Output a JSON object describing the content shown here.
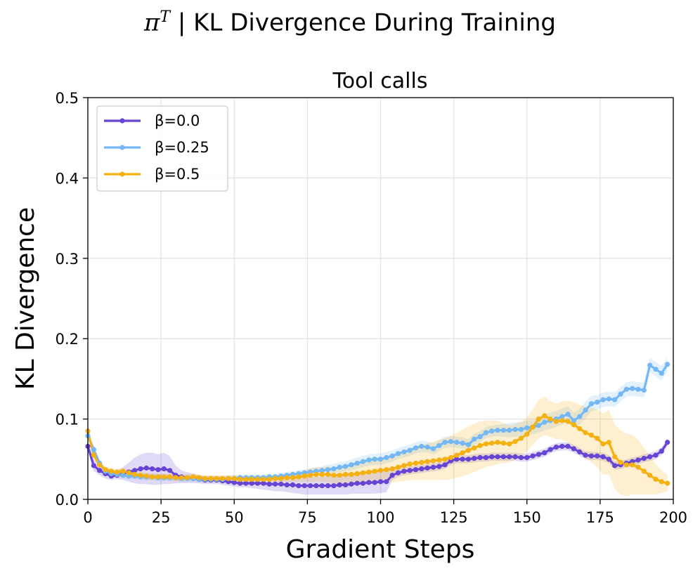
{
  "suptitle": {
    "symbol": "π",
    "superscript": "T",
    "text": "| KL Divergence During Training"
  },
  "chart_data": {
    "type": "line",
    "title": "Tool calls",
    "xlabel": "Gradient Steps",
    "ylabel": "KL Divergence",
    "xlim": [
      0,
      200
    ],
    "ylim": [
      0,
      0.5
    ],
    "xticks": [
      0,
      25,
      50,
      75,
      100,
      125,
      150,
      175,
      200
    ],
    "yticks": [
      0.0,
      0.1,
      0.2,
      0.3,
      0.4,
      0.5
    ],
    "xtick_labels": [
      "0",
      "25",
      "50",
      "75",
      "100",
      "125",
      "150",
      "175",
      "200"
    ],
    "ytick_labels": [
      "0.0",
      "0.1",
      "0.2",
      "0.3",
      "0.4",
      "0.5"
    ],
    "grid": true,
    "legend_position": "top-left",
    "x": [
      0,
      2,
      4,
      6,
      8,
      10,
      12,
      14,
      16,
      18,
      20,
      22,
      24,
      26,
      28,
      30,
      32,
      34,
      36,
      38,
      40,
      42,
      44,
      46,
      48,
      50,
      52,
      54,
      56,
      58,
      60,
      62,
      64,
      66,
      68,
      70,
      72,
      74,
      76,
      78,
      80,
      82,
      84,
      86,
      88,
      90,
      92,
      94,
      96,
      98,
      100,
      102,
      104,
      106,
      108,
      110,
      112,
      114,
      116,
      118,
      120,
      122,
      124,
      126,
      128,
      130,
      132,
      134,
      136,
      138,
      140,
      142,
      144,
      146,
      148,
      150,
      152,
      154,
      156,
      158,
      160,
      162,
      164,
      166,
      168,
      170,
      172,
      174,
      176,
      178,
      180,
      182,
      184,
      186,
      188,
      190,
      192,
      194,
      196,
      198
    ],
    "series": [
      {
        "name": "β=0.0",
        "color": "#6644d4",
        "values": [
          0.066,
          0.042,
          0.036,
          0.032,
          0.029,
          0.03,
          0.032,
          0.034,
          0.036,
          0.038,
          0.039,
          0.038,
          0.037,
          0.038,
          0.036,
          0.03,
          0.028,
          0.027,
          0.026,
          0.025,
          0.024,
          0.024,
          0.024,
          0.023,
          0.022,
          0.021,
          0.02,
          0.02,
          0.02,
          0.02,
          0.02,
          0.019,
          0.019,
          0.019,
          0.018,
          0.018,
          0.017,
          0.017,
          0.017,
          0.017,
          0.017,
          0.017,
          0.017,
          0.018,
          0.018,
          0.019,
          0.02,
          0.02,
          0.021,
          0.021,
          0.022,
          0.022,
          0.03,
          0.033,
          0.035,
          0.036,
          0.037,
          0.038,
          0.039,
          0.04,
          0.041,
          0.043,
          0.048,
          0.05,
          0.05,
          0.05,
          0.051,
          0.052,
          0.052,
          0.053,
          0.053,
          0.053,
          0.053,
          0.053,
          0.052,
          0.052,
          0.054,
          0.056,
          0.058,
          0.062,
          0.065,
          0.066,
          0.066,
          0.063,
          0.059,
          0.055,
          0.054,
          0.054,
          0.053,
          0.05,
          0.042,
          0.043,
          0.045,
          0.047,
          0.049,
          0.051,
          0.053,
          0.055,
          0.06,
          0.071
        ],
        "band_low": [
          0.06,
          0.035,
          0.03,
          0.026,
          0.024,
          0.025,
          0.024,
          0.022,
          0.02,
          0.019,
          0.019,
          0.018,
          0.018,
          0.019,
          0.019,
          0.02,
          0.02,
          0.02,
          0.02,
          0.02,
          0.019,
          0.019,
          0.019,
          0.018,
          0.017,
          0.016,
          0.015,
          0.015,
          0.014,
          0.013,
          0.012,
          0.011,
          0.01,
          0.01,
          0.009,
          0.008,
          0.007,
          0.006,
          0.006,
          0.006,
          0.006,
          0.006,
          0.006,
          0.006,
          0.006,
          0.007,
          0.007,
          0.007,
          0.007,
          0.007,
          0.008,
          0.009,
          0.024,
          0.028,
          0.03,
          0.031,
          0.032,
          0.033,
          0.034,
          0.035,
          0.036,
          0.038,
          0.043,
          0.045,
          0.045,
          0.045,
          0.046,
          0.047,
          0.047,
          0.048,
          0.048,
          0.048,
          0.048,
          0.048,
          0.047,
          0.047,
          0.049,
          0.051,
          0.053,
          0.057,
          0.06,
          0.061,
          0.061,
          0.058,
          0.054,
          0.05,
          0.049,
          0.049,
          0.048,
          0.045,
          0.037,
          0.038,
          0.04,
          0.042,
          0.044,
          0.046,
          0.048,
          0.05,
          0.055,
          0.066
        ],
        "band_high": [
          0.072,
          0.05,
          0.043,
          0.038,
          0.035,
          0.036,
          0.04,
          0.046,
          0.052,
          0.056,
          0.058,
          0.058,
          0.056,
          0.058,
          0.054,
          0.042,
          0.036,
          0.034,
          0.032,
          0.03,
          0.029,
          0.029,
          0.029,
          0.028,
          0.027,
          0.026,
          0.025,
          0.025,
          0.026,
          0.027,
          0.028,
          0.028,
          0.028,
          0.028,
          0.028,
          0.028,
          0.028,
          0.028,
          0.028,
          0.028,
          0.028,
          0.029,
          0.03,
          0.031,
          0.031,
          0.032,
          0.033,
          0.034,
          0.035,
          0.036,
          0.037,
          0.038,
          0.036,
          0.038,
          0.04,
          0.041,
          0.042,
          0.043,
          0.044,
          0.045,
          0.046,
          0.048,
          0.053,
          0.055,
          0.055,
          0.055,
          0.056,
          0.057,
          0.057,
          0.058,
          0.058,
          0.058,
          0.058,
          0.058,
          0.057,
          0.057,
          0.059,
          0.061,
          0.063,
          0.067,
          0.07,
          0.071,
          0.071,
          0.068,
          0.064,
          0.06,
          0.059,
          0.059,
          0.058,
          0.055,
          0.047,
          0.048,
          0.05,
          0.052,
          0.054,
          0.056,
          0.058,
          0.06,
          0.065,
          0.076
        ]
      },
      {
        "name": "β=0.25",
        "color": "#73b7f5",
        "values": [
          0.079,
          0.062,
          0.045,
          0.035,
          0.032,
          0.031,
          0.03,
          0.029,
          0.029,
          0.028,
          0.028,
          0.028,
          0.027,
          0.027,
          0.027,
          0.027,
          0.026,
          0.026,
          0.026,
          0.025,
          0.025,
          0.025,
          0.025,
          0.025,
          0.026,
          0.026,
          0.027,
          0.027,
          0.027,
          0.027,
          0.027,
          0.028,
          0.028,
          0.029,
          0.03,
          0.031,
          0.032,
          0.033,
          0.034,
          0.035,
          0.036,
          0.037,
          0.038,
          0.04,
          0.041,
          0.043,
          0.045,
          0.047,
          0.049,
          0.05,
          0.05,
          0.052,
          0.054,
          0.057,
          0.059,
          0.061,
          0.064,
          0.066,
          0.065,
          0.063,
          0.067,
          0.071,
          0.072,
          0.071,
          0.07,
          0.068,
          0.075,
          0.078,
          0.083,
          0.085,
          0.086,
          0.086,
          0.086,
          0.087,
          0.087,
          0.089,
          0.09,
          0.092,
          0.096,
          0.098,
          0.1,
          0.103,
          0.106,
          0.098,
          0.103,
          0.111,
          0.119,
          0.121,
          0.124,
          0.125,
          0.124,
          0.131,
          0.137,
          0.138,
          0.137,
          0.136,
          0.167,
          0.162,
          0.157,
          0.168
        ],
        "band_low": [
          0.074,
          0.057,
          0.041,
          0.031,
          0.028,
          0.027,
          0.026,
          0.025,
          0.025,
          0.024,
          0.024,
          0.024,
          0.023,
          0.023,
          0.023,
          0.023,
          0.022,
          0.022,
          0.022,
          0.021,
          0.021,
          0.021,
          0.021,
          0.021,
          0.022,
          0.022,
          0.023,
          0.023,
          0.023,
          0.023,
          0.023,
          0.024,
          0.024,
          0.025,
          0.026,
          0.027,
          0.028,
          0.029,
          0.029,
          0.03,
          0.031,
          0.031,
          0.032,
          0.034,
          0.035,
          0.036,
          0.038,
          0.04,
          0.042,
          0.043,
          0.043,
          0.045,
          0.047,
          0.05,
          0.052,
          0.054,
          0.057,
          0.059,
          0.058,
          0.056,
          0.06,
          0.064,
          0.065,
          0.064,
          0.063,
          0.061,
          0.068,
          0.071,
          0.076,
          0.078,
          0.079,
          0.078,
          0.077,
          0.078,
          0.078,
          0.08,
          0.081,
          0.083,
          0.086,
          0.088,
          0.09,
          0.093,
          0.096,
          0.088,
          0.093,
          0.101,
          0.109,
          0.112,
          0.115,
          0.116,
          0.115,
          0.122,
          0.128,
          0.129,
          0.128,
          0.127,
          0.158,
          0.153,
          0.148,
          0.159
        ],
        "band_high": [
          0.084,
          0.067,
          0.049,
          0.039,
          0.036,
          0.035,
          0.034,
          0.033,
          0.033,
          0.032,
          0.032,
          0.032,
          0.031,
          0.031,
          0.031,
          0.031,
          0.03,
          0.03,
          0.03,
          0.029,
          0.029,
          0.029,
          0.029,
          0.029,
          0.03,
          0.03,
          0.031,
          0.031,
          0.031,
          0.031,
          0.031,
          0.032,
          0.032,
          0.033,
          0.034,
          0.035,
          0.036,
          0.037,
          0.039,
          0.04,
          0.041,
          0.043,
          0.044,
          0.046,
          0.047,
          0.05,
          0.052,
          0.054,
          0.056,
          0.057,
          0.057,
          0.059,
          0.061,
          0.064,
          0.066,
          0.068,
          0.071,
          0.073,
          0.072,
          0.07,
          0.074,
          0.078,
          0.079,
          0.078,
          0.077,
          0.075,
          0.082,
          0.085,
          0.09,
          0.092,
          0.093,
          0.094,
          0.095,
          0.096,
          0.096,
          0.098,
          0.099,
          0.101,
          0.106,
          0.108,
          0.11,
          0.113,
          0.116,
          0.108,
          0.113,
          0.121,
          0.129,
          0.13,
          0.133,
          0.134,
          0.133,
          0.14,
          0.146,
          0.147,
          0.146,
          0.145,
          0.176,
          0.171,
          0.166,
          0.177
        ]
      },
      {
        "name": "β=0.5",
        "color": "#f5b011",
        "values": [
          0.085,
          0.055,
          0.043,
          0.037,
          0.035,
          0.034,
          0.035,
          0.033,
          0.031,
          0.03,
          0.029,
          0.028,
          0.028,
          0.028,
          0.028,
          0.027,
          0.027,
          0.027,
          0.028,
          0.027,
          0.026,
          0.026,
          0.026,
          0.026,
          0.026,
          0.026,
          0.025,
          0.025,
          0.025,
          0.025,
          0.025,
          0.025,
          0.026,
          0.026,
          0.027,
          0.027,
          0.028,
          0.029,
          0.03,
          0.031,
          0.031,
          0.031,
          0.03,
          0.03,
          0.031,
          0.031,
          0.032,
          0.033,
          0.034,
          0.035,
          0.036,
          0.037,
          0.038,
          0.04,
          0.042,
          0.044,
          0.045,
          0.046,
          0.047,
          0.048,
          0.049,
          0.05,
          0.052,
          0.055,
          0.058,
          0.061,
          0.064,
          0.067,
          0.069,
          0.07,
          0.071,
          0.07,
          0.069,
          0.072,
          0.076,
          0.081,
          0.09,
          0.1,
          0.104,
          0.1,
          0.097,
          0.098,
          0.097,
          0.093,
          0.088,
          0.083,
          0.08,
          0.076,
          0.069,
          0.071,
          0.053,
          0.046,
          0.043,
          0.043,
          0.04,
          0.035,
          0.03,
          0.025,
          0.022,
          0.02
        ],
        "band_low": [
          0.08,
          0.05,
          0.039,
          0.033,
          0.031,
          0.03,
          0.031,
          0.029,
          0.027,
          0.026,
          0.025,
          0.024,
          0.024,
          0.024,
          0.024,
          0.023,
          0.023,
          0.023,
          0.024,
          0.023,
          0.022,
          0.022,
          0.022,
          0.022,
          0.022,
          0.022,
          0.021,
          0.021,
          0.021,
          0.021,
          0.021,
          0.021,
          0.022,
          0.022,
          0.022,
          0.022,
          0.022,
          0.022,
          0.022,
          0.022,
          0.022,
          0.021,
          0.02,
          0.02,
          0.02,
          0.02,
          0.02,
          0.02,
          0.02,
          0.02,
          0.02,
          0.021,
          0.021,
          0.022,
          0.023,
          0.024,
          0.024,
          0.024,
          0.024,
          0.024,
          0.024,
          0.024,
          0.025,
          0.027,
          0.029,
          0.031,
          0.034,
          0.037,
          0.04,
          0.042,
          0.044,
          0.045,
          0.046,
          0.05,
          0.055,
          0.06,
          0.068,
          0.076,
          0.08,
          0.078,
          0.075,
          0.074,
          0.071,
          0.065,
          0.058,
          0.051,
          0.046,
          0.04,
          0.031,
          0.031,
          0.013,
          0.006,
          0.004,
          0.006,
          0.006,
          0.006,
          0.006,
          0.006,
          0.008,
          0.01
        ],
        "band_high": [
          0.09,
          0.06,
          0.047,
          0.041,
          0.039,
          0.038,
          0.039,
          0.037,
          0.035,
          0.034,
          0.033,
          0.032,
          0.032,
          0.032,
          0.032,
          0.031,
          0.031,
          0.031,
          0.032,
          0.031,
          0.03,
          0.03,
          0.03,
          0.03,
          0.03,
          0.03,
          0.029,
          0.029,
          0.029,
          0.029,
          0.029,
          0.029,
          0.03,
          0.03,
          0.032,
          0.032,
          0.034,
          0.036,
          0.038,
          0.04,
          0.04,
          0.041,
          0.04,
          0.04,
          0.042,
          0.042,
          0.044,
          0.046,
          0.048,
          0.05,
          0.052,
          0.053,
          0.055,
          0.058,
          0.061,
          0.064,
          0.066,
          0.068,
          0.07,
          0.072,
          0.074,
          0.076,
          0.079,
          0.083,
          0.087,
          0.091,
          0.094,
          0.097,
          0.098,
          0.098,
          0.098,
          0.095,
          0.092,
          0.094,
          0.097,
          0.102,
          0.112,
          0.124,
          0.128,
          0.122,
          0.119,
          0.122,
          0.123,
          0.121,
          0.118,
          0.115,
          0.114,
          0.112,
          0.107,
          0.111,
          0.093,
          0.086,
          0.082,
          0.08,
          0.074,
          0.064,
          0.054,
          0.044,
          0.036,
          0.03
        ]
      }
    ]
  }
}
